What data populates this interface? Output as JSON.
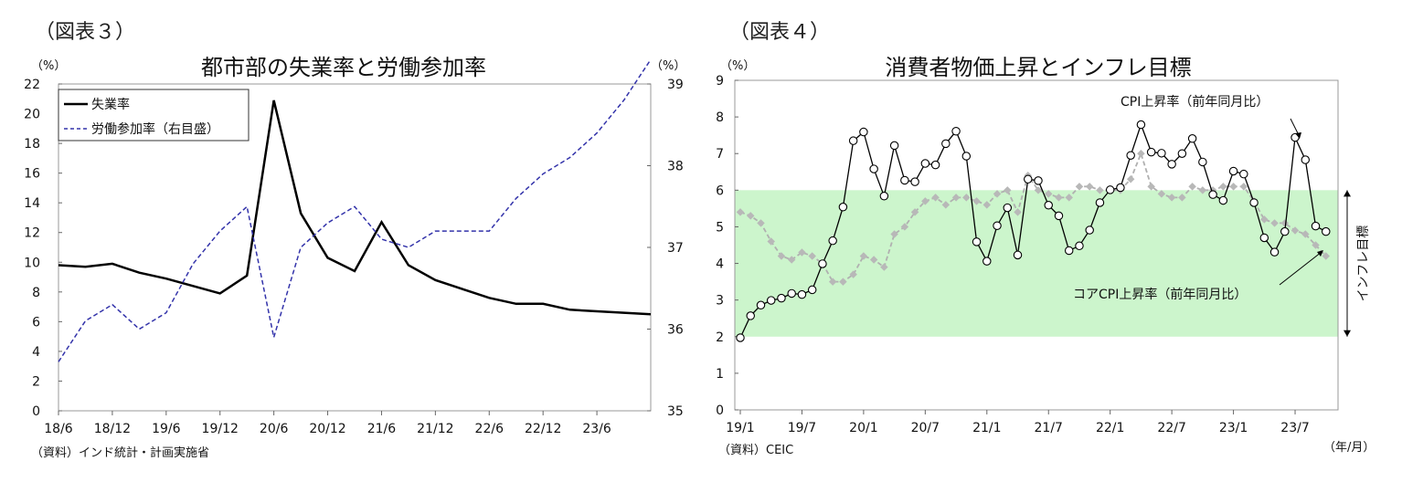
{
  "chart_data": [
    {
      "type": "line",
      "figure_label": "（図表３）",
      "title": "都市部の失業率と労働参加率",
      "y_unit_left": "（%）",
      "y_unit_right": "（%）",
      "x_tick_labels": [
        "18/6",
        "18/12",
        "19/6",
        "19/12",
        "20/6",
        "20/12",
        "21/6",
        "21/12",
        "22/6",
        "22/12",
        "23/6"
      ],
      "ylim_left": [
        0,
        22
      ],
      "yticks_left": [
        "0",
        "2",
        "4",
        "6",
        "8",
        "10",
        "12",
        "14",
        "16",
        "18",
        "20",
        "22"
      ],
      "ylim_right": [
        35,
        39
      ],
      "yticks_right": [
        "35",
        "36",
        "37",
        "38",
        "39"
      ],
      "x_range": [
        "2018/6",
        "2023/12"
      ],
      "legend": {
        "placement": "top-left",
        "entries": [
          "失業率",
          "労働参加率（右目盛）"
        ]
      },
      "series": [
        {
          "name": "失業率",
          "axis": "left",
          "style": "solid",
          "x": [
            "2018/6",
            "2018/9",
            "2018/12",
            "2019/3",
            "2019/6",
            "2019/9",
            "2019/12",
            "2020/3",
            "2020/6",
            "2020/9",
            "2020/12",
            "2021/3",
            "2021/6",
            "2021/9",
            "2021/12",
            "2022/3",
            "2022/6",
            "2022/9",
            "2022/12",
            "2023/3",
            "2023/6",
            "2023/9",
            "2023/12"
          ],
          "values": [
            9.8,
            9.7,
            9.9,
            9.3,
            8.9,
            8.4,
            7.9,
            9.1,
            20.9,
            13.3,
            10.3,
            9.4,
            12.7,
            9.8,
            8.8,
            8.2,
            7.6,
            7.2,
            7.2,
            6.8,
            6.7,
            6.6,
            6.5
          ]
        },
        {
          "name": "労働参加率（右目盛）",
          "axis": "right",
          "style": "dashed",
          "x": [
            "2018/6",
            "2018/9",
            "2018/12",
            "2019/3",
            "2019/6",
            "2019/9",
            "2019/12",
            "2020/3",
            "2020/6",
            "2020/9",
            "2020/12",
            "2021/3",
            "2021/6",
            "2021/9",
            "2021/12",
            "2022/3",
            "2022/6",
            "2022/9",
            "2022/12",
            "2023/3",
            "2023/6",
            "2023/9",
            "2023/12"
          ],
          "values": [
            35.6,
            36.1,
            36.3,
            36.0,
            36.2,
            36.8,
            37.2,
            37.5,
            35.9,
            37.0,
            37.3,
            37.5,
            37.1,
            37.0,
            37.2,
            37.2,
            37.2,
            37.6,
            37.9,
            38.1,
            38.4,
            38.8,
            39.3
          ]
        }
      ],
      "source_note": "（資料）インド統計・計画実施省"
    },
    {
      "type": "line",
      "figure_label": "（図表４）",
      "title": "消費者物価上昇とインフレ目標",
      "y_unit_left": "（%）",
      "x_tick_labels": [
        "19/1",
        "19/7",
        "20/1",
        "20/7",
        "21/1",
        "21/7",
        "22/1",
        "22/7",
        "23/1",
        "23/7"
      ],
      "x_unit": "（年/月）",
      "ylim": [
        0,
        9
      ],
      "yticks": [
        "0",
        "1",
        "2",
        "3",
        "4",
        "5",
        "6",
        "7",
        "8",
        "9"
      ],
      "target_band": {
        "low": 2,
        "high": 6,
        "color": "#ccf5cc",
        "label": "インフレ目標"
      },
      "annotations": [
        "CPI上昇率（前年同月比）",
        "コアCPI上昇率（前年同月比）"
      ],
      "series": [
        {
          "name": "CPI上昇率（前年同月比）",
          "style": "solid-markers",
          "x": [
            "2019/1",
            "2019/2",
            "2019/3",
            "2019/4",
            "2019/5",
            "2019/6",
            "2019/7",
            "2019/8",
            "2019/9",
            "2019/10",
            "2019/11",
            "2019/12",
            "2020/1",
            "2020/2",
            "2020/3",
            "2020/4",
            "2020/5",
            "2020/6",
            "2020/7",
            "2020/8",
            "2020/9",
            "2020/10",
            "2020/11",
            "2020/12",
            "2021/1",
            "2021/2",
            "2021/3",
            "2021/4",
            "2021/5",
            "2021/6",
            "2021/7",
            "2021/8",
            "2021/9",
            "2021/10",
            "2021/11",
            "2021/12",
            "2022/1",
            "2022/2",
            "2022/3",
            "2022/4",
            "2022/5",
            "2022/6",
            "2022/7",
            "2022/8",
            "2022/9",
            "2022/10",
            "2022/11",
            "2022/12",
            "2023/1",
            "2023/2",
            "2023/3",
            "2023/4",
            "2023/5",
            "2023/6",
            "2023/7",
            "2023/8",
            "2023/9",
            "2023/10"
          ],
          "values": [
            1.97,
            2.57,
            2.86,
            2.99,
            3.05,
            3.18,
            3.15,
            3.28,
            3.99,
            4.62,
            5.54,
            7.35,
            7.59,
            6.58,
            5.84,
            7.22,
            6.27,
            6.23,
            6.73,
            6.69,
            7.27,
            7.61,
            6.93,
            4.59,
            4.06,
            5.03,
            5.52,
            4.23,
            6.3,
            6.26,
            5.59,
            5.3,
            4.35,
            4.48,
            4.91,
            5.66,
            6.01,
            6.07,
            6.95,
            7.79,
            7.04,
            7.01,
            6.71,
            7.0,
            7.41,
            6.77,
            5.88,
            5.72,
            6.52,
            6.44,
            5.66,
            4.7,
            4.31,
            4.87,
            7.44,
            6.83,
            5.02,
            4.87
          ]
        },
        {
          "name": "コアCPI上昇率（前年同月比）",
          "style": "dashed-markers",
          "x": [
            "2019/1",
            "2019/2",
            "2019/3",
            "2019/4",
            "2019/5",
            "2019/6",
            "2019/7",
            "2019/8",
            "2019/9",
            "2019/10",
            "2019/11",
            "2019/12",
            "2020/1",
            "2020/2",
            "2020/3",
            "2020/4",
            "2020/5",
            "2020/6",
            "2020/7",
            "2020/8",
            "2020/9",
            "2020/10",
            "2020/11",
            "2020/12",
            "2021/1",
            "2021/2",
            "2021/3",
            "2021/4",
            "2021/5",
            "2021/6",
            "2021/7",
            "2021/8",
            "2021/9",
            "2021/10",
            "2021/11",
            "2021/12",
            "2022/1",
            "2022/2",
            "2022/3",
            "2022/4",
            "2022/5",
            "2022/6",
            "2022/7",
            "2022/8",
            "2022/9",
            "2022/10",
            "2022/11",
            "2022/12",
            "2023/1",
            "2023/2",
            "2023/3",
            "2023/4",
            "2023/5",
            "2023/6",
            "2023/7",
            "2023/8",
            "2023/9",
            "2023/10"
          ],
          "values": [
            5.4,
            5.3,
            5.1,
            4.6,
            4.2,
            4.1,
            4.3,
            4.2,
            4.0,
            3.5,
            3.5,
            3.7,
            4.2,
            4.1,
            3.9,
            4.8,
            5.0,
            5.4,
            5.7,
            5.8,
            5.6,
            5.8,
            5.8,
            5.7,
            5.6,
            5.9,
            6.0,
            5.4,
            6.4,
            6.0,
            5.9,
            5.8,
            5.8,
            6.1,
            6.1,
            6.0,
            6.0,
            6.0,
            6.3,
            7.0,
            6.1,
            5.9,
            5.8,
            5.8,
            6.1,
            6.0,
            6.0,
            6.1,
            6.1,
            6.1,
            5.7,
            5.2,
            5.1,
            5.1,
            4.9,
            4.8,
            4.5,
            4.2
          ]
        }
      ],
      "source_note": "（資料）CEIC"
    }
  ]
}
